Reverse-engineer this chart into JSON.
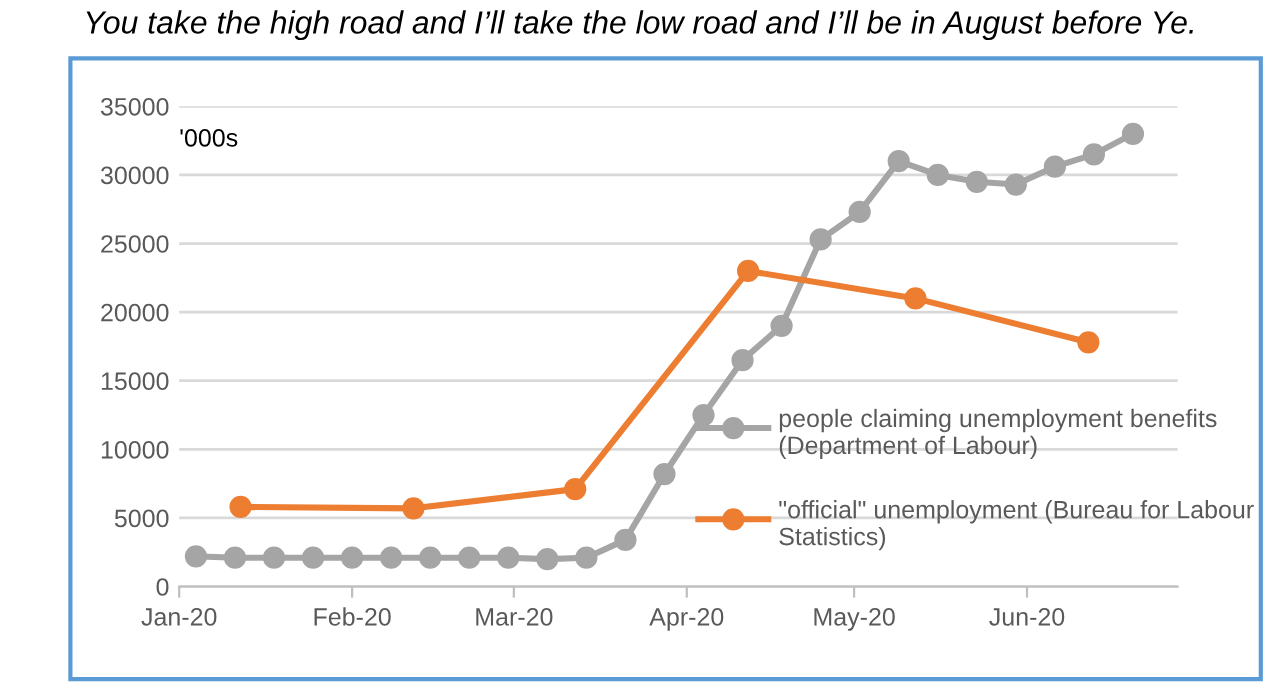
{
  "chart_data": {
    "type": "line",
    "title": "You take the high road and I’ll take the low road and I’ll be in August before Ye.",
    "ylabel": "'000s",
    "series": [
      {
        "name": "people claiming unemployment benefits (Department of Labour)",
        "color": "#a5a5a5",
        "x": [
          "2020-01-04",
          "2020-01-11",
          "2020-01-18",
          "2020-01-25",
          "2020-02-01",
          "2020-02-08",
          "2020-02-15",
          "2020-02-22",
          "2020-02-29",
          "2020-03-07",
          "2020-03-14",
          "2020-03-21",
          "2020-03-28",
          "2020-04-04",
          "2020-04-11",
          "2020-04-18",
          "2020-04-25",
          "2020-05-02",
          "2020-05-09",
          "2020-05-16",
          "2020-05-23",
          "2020-05-30",
          "2020-06-06",
          "2020-06-13",
          "2020-06-20"
        ],
        "values": [
          2200,
          2100,
          2100,
          2100,
          2100,
          2100,
          2100,
          2100,
          2100,
          2000,
          2100,
          3400,
          8200,
          12500,
          16500,
          19000,
          25300,
          27300,
          31000,
          30000,
          29500,
          29300,
          30600,
          31500,
          33000
        ]
      },
      {
        "name": "\"official\" unemployment (Bureau for Labour Statistics)",
        "color": "#ed7d31",
        "x": [
          "2020-01-12",
          "2020-02-12",
          "2020-03-12",
          "2020-04-12",
          "2020-05-12",
          "2020-06-12"
        ],
        "values": [
          5800,
          5700,
          7100,
          23000,
          21000,
          17800
        ]
      }
    ],
    "xlim": [
      "2020-01-01",
      "2020-06-28"
    ],
    "xticks": [
      {
        "value": "2020-01-01",
        "label": "Jan-20"
      },
      {
        "value": "2020-02-01",
        "label": "Feb-20"
      },
      {
        "value": "2020-03-01",
        "label": "Mar-20"
      },
      {
        "value": "2020-04-01",
        "label": "Apr-20"
      },
      {
        "value": "2020-05-01",
        "label": "May-20"
      },
      {
        "value": "2020-06-01",
        "label": "Jun-20"
      }
    ],
    "ylim": [
      0,
      35000
    ],
    "yticks": [
      0,
      5000,
      10000,
      15000,
      20000,
      25000,
      30000,
      35000
    ],
    "grid": "y",
    "legend": "bottom right",
    "marker": "circle",
    "line_style": "solid"
  }
}
